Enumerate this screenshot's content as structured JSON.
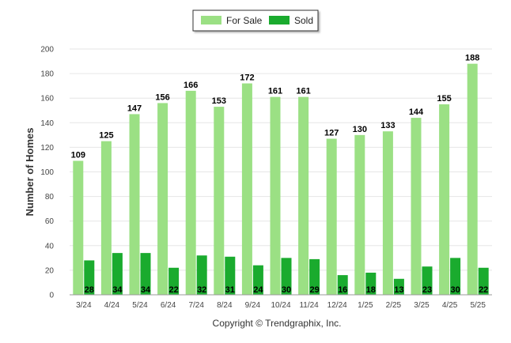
{
  "chart_data": {
    "type": "bar",
    "title": "",
    "xlabel": "",
    "ylabel": "Number of Homes",
    "ylim": [
      0,
      200
    ],
    "yticks": [
      0,
      20,
      40,
      60,
      80,
      100,
      120,
      140,
      160,
      180,
      200
    ],
    "grid": true,
    "legend_position": "top-center",
    "categories": [
      "3/24",
      "4/24",
      "5/24",
      "6/24",
      "7/24",
      "8/24",
      "9/24",
      "10/24",
      "11/24",
      "12/24",
      "1/25",
      "2/25",
      "3/25",
      "4/25",
      "5/25"
    ],
    "series": [
      {
        "name": "For Sale",
        "color": "#9be084",
        "values": [
          109,
          125,
          147,
          156,
          166,
          153,
          172,
          161,
          161,
          127,
          130,
          133,
          144,
          155,
          188
        ]
      },
      {
        "name": "Sold",
        "color": "#1aab2e",
        "values": [
          28,
          34,
          34,
          22,
          32,
          31,
          24,
          30,
          29,
          16,
          18,
          13,
          23,
          30,
          22
        ]
      }
    ],
    "footer": "Copyright © Trendgraphix, Inc."
  }
}
